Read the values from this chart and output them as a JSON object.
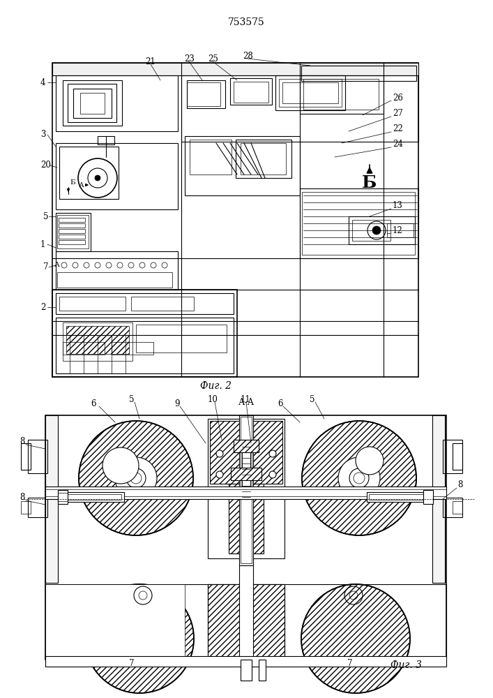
{
  "title": "753575",
  "fig2_caption": "Фиг. 2",
  "fig3_caption": "Фиг. 3",
  "fig3_section": "А-А",
  "bg": "#ffffff",
  "lc": "#000000"
}
